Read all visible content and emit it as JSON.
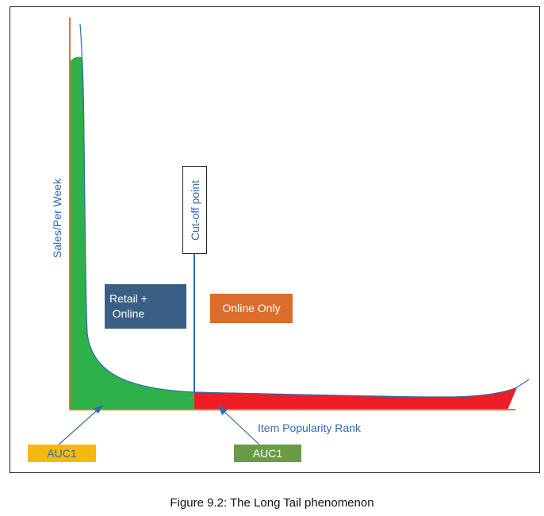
{
  "labels": {
    "y_axis": "Sales/Per Week",
    "x_axis": "Item Popularity Rank",
    "cutoff": "Cut-off point",
    "retail_online": "Retail +\nOnline",
    "online_only": "Online Only",
    "auc_left": "AUC1",
    "auc_right": "AUC1"
  },
  "caption": "Figure 9.2: The Long Tail phenomenon",
  "colors": {
    "head_area": "#2eb14a",
    "tail_area": "#ee1c25",
    "curve": "#2f6bb0",
    "axes": "#e8752a",
    "retail_box": "#3a5f85",
    "online_box": "#db6c2b",
    "auc_left": "#f5b80f",
    "auc_right": "#6a9b47"
  }
}
